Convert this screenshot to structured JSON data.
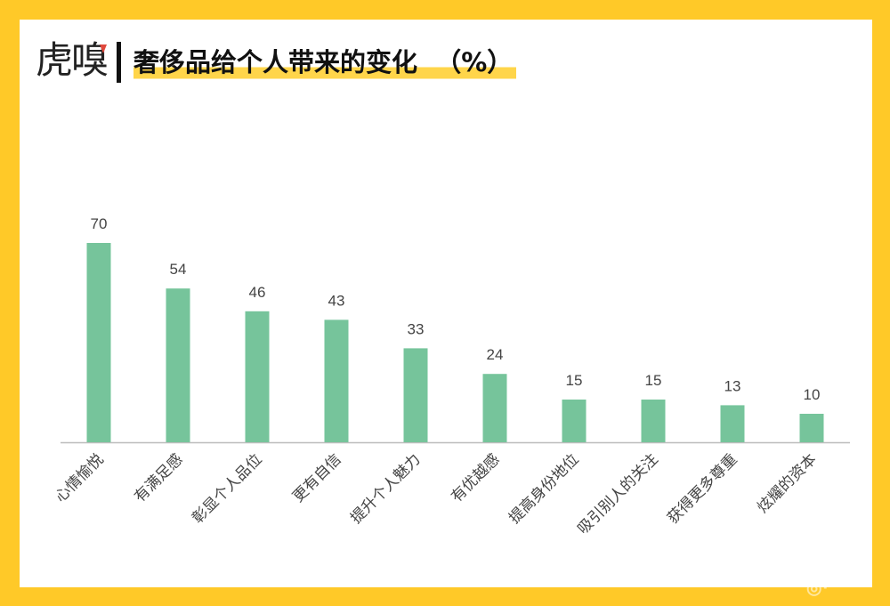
{
  "brand": {
    "logo_text": "虎嗅"
  },
  "title": "奢侈品给个人带来的变化  （%）",
  "colors": {
    "background": "#FFC928",
    "bar": "#76C49B",
    "axis": "#BDBDBD",
    "highlight": "#FFD54A"
  },
  "chart_data": {
    "type": "bar",
    "title": "奢侈品给个人带来的变化  （%）",
    "categories": [
      "心情愉悦",
      "有满足感",
      "彰显个人品位",
      "更有自信",
      "提升个人魅力",
      "有优越感",
      "提高身份地位",
      "吸引别人的关注",
      "获得更多尊重",
      "炫耀的资本"
    ],
    "values": [
      70,
      54,
      46,
      43,
      33,
      24,
      15,
      15,
      13,
      10
    ],
    "xlabel": "",
    "ylabel": "",
    "ylim": [
      0,
      70
    ],
    "grid": false,
    "data_labels": true,
    "legend": "none"
  }
}
